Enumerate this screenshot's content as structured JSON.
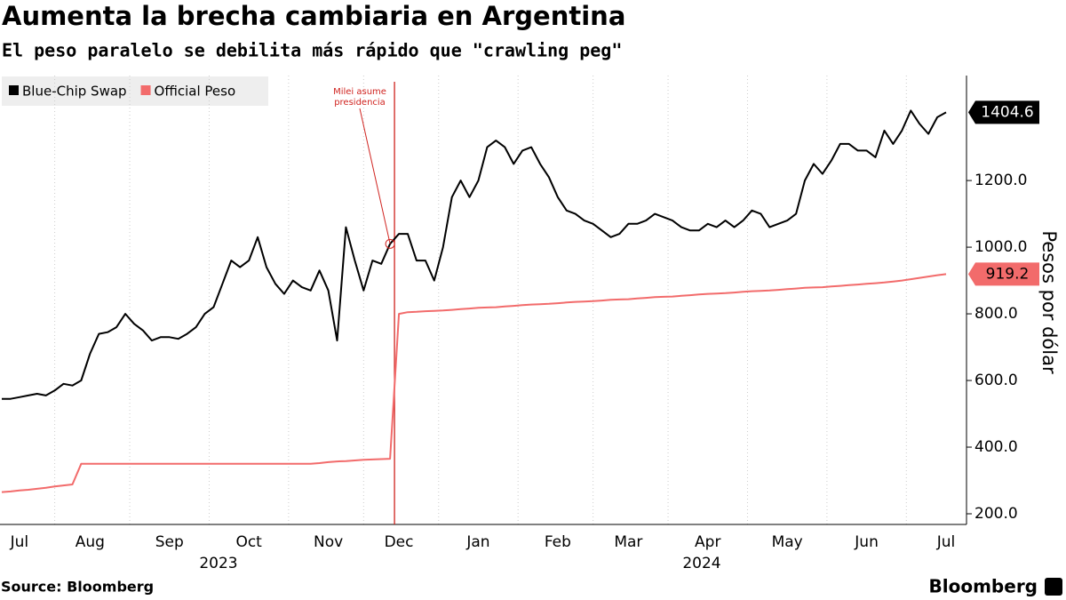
{
  "chart_data": {
    "type": "line",
    "title": "Aumenta la brecha cambiaria en Argentina",
    "subtitle": "El peso paralelo se debilita más rápido que \"crawling peg\"",
    "y_label": "Pesos por dólar",
    "annotation": [
      "Milei asume",
      "presidencia"
    ],
    "years": [
      "2023",
      "2024"
    ],
    "source": "Source: Bloomberg",
    "logo": "Bloomberg",
    "legend": "top-left",
    "y_axis_side": "right",
    "ylim": [
      168,
      1515
    ],
    "yticks": [
      {
        "value": 200,
        "label": "200.0"
      },
      {
        "value": 400,
        "label": "400.0"
      },
      {
        "value": 600,
        "label": "600.0"
      },
      {
        "value": 800,
        "label": "800.0"
      },
      {
        "value": 1000,
        "label": "1000.0"
      },
      {
        "value": 1200,
        "label": "1200.0"
      }
    ],
    "categories": [
      null,
      null,
      "Jul",
      null,
      null,
      null,
      null,
      null,
      null,
      null,
      "Aug",
      null,
      null,
      null,
      null,
      null,
      null,
      null,
      null,
      "Sep",
      null,
      null,
      null,
      null,
      null,
      null,
      null,
      null,
      "Oct",
      null,
      null,
      null,
      null,
      null,
      null,
      null,
      null,
      "Nov",
      null,
      null,
      null,
      null,
      null,
      null,
      null,
      "Dec",
      null,
      null,
      null,
      null,
      null,
      null,
      null,
      null,
      "Jan",
      null,
      null,
      null,
      null,
      null,
      null,
      null,
      null,
      "Feb",
      null,
      null,
      null,
      null,
      null,
      null,
      null,
      "Mar",
      null,
      null,
      null,
      null,
      null,
      null,
      null,
      null,
      "Apr",
      null,
      null,
      null,
      null,
      null,
      null,
      null,
      null,
      "May",
      null,
      null,
      null,
      null,
      null,
      null,
      null,
      null,
      "Jun",
      null,
      null,
      null,
      null,
      null,
      null,
      null,
      null,
      "Jul"
    ],
    "series": [
      {
        "name": "Blue-Chip Swap",
        "color": "#000000",
        "values": [
          545,
          545,
          550,
          555,
          560,
          555,
          570,
          590,
          585,
          600,
          680,
          740,
          745,
          760,
          800,
          770,
          750,
          720,
          730,
          730,
          725,
          740,
          760,
          800,
          820,
          890,
          960,
          940,
          960,
          1030,
          940,
          890,
          860,
          900,
          880,
          870,
          930,
          870,
          720,
          1060,
          960,
          870,
          960,
          950,
          1010,
          1040,
          1040,
          960,
          960,
          900,
          1000,
          1150,
          1200,
          1150,
          1200,
          1300,
          1320,
          1300,
          1250,
          1290,
          1300,
          1250,
          1210,
          1150,
          1110,
          1100,
          1080,
          1070,
          1050,
          1030,
          1040,
          1070,
          1070,
          1080,
          1100,
          1090,
          1080,
          1060,
          1050,
          1050,
          1070,
          1060,
          1080,
          1060,
          1080,
          1110,
          1100,
          1060,
          1070,
          1080,
          1100,
          1200,
          1250,
          1220,
          1260,
          1310,
          1310,
          1290,
          1290,
          1270,
          1350,
          1310,
          1350,
          1410,
          1370,
          1340,
          1390,
          1404.6
        ]
      },
      {
        "name": "Official Peso",
        "color": "#f26b6b",
        "values": [
          265,
          267,
          270,
          272,
          275,
          278,
          282,
          285,
          288,
          350,
          350,
          350,
          350,
          350,
          350,
          350,
          350,
          350,
          350,
          350,
          350,
          350,
          350,
          350,
          350,
          350,
          350,
          350,
          350,
          350,
          350,
          350,
          350,
          350,
          350,
          350,
          352,
          355,
          357,
          358,
          360,
          362,
          363,
          364,
          365,
          800,
          805,
          806,
          808,
          809,
          810,
          812,
          814,
          816,
          818,
          819,
          820,
          822,
          824,
          826,
          828,
          829,
          830,
          832,
          834,
          836,
          837,
          838,
          840,
          842,
          843,
          844,
          846,
          848,
          850,
          851,
          852,
          854,
          856,
          858,
          860,
          861,
          862,
          864,
          866,
          868,
          869,
          870,
          872,
          874,
          876,
          878,
          879,
          880,
          882,
          884,
          886,
          888,
          890,
          892,
          894,
          897,
          900,
          904,
          908,
          912,
          916,
          919.2
        ]
      }
    ]
  }
}
